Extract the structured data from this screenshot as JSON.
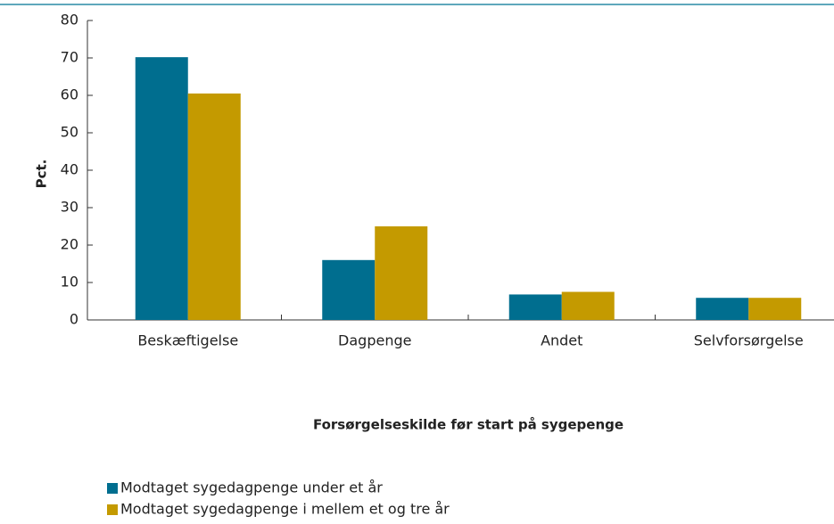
{
  "chart_data": {
    "type": "bar",
    "y_label": "Pct.",
    "x_label": "Forsørgelseskilde før start på sygepenge",
    "categories": [
      "Beskæftigelse",
      "Dagpenge",
      "Andet",
      "Selvforsørgelse"
    ],
    "series": [
      {
        "name": "Modtaget sygedagpenge under et år",
        "color": "#006e8f",
        "values": [
          70.2,
          16,
          6.8,
          5.9
        ]
      },
      {
        "name": "Modtaget sygedagpenge i mellem et og tre år",
        "color": "#c49a00",
        "values": [
          60.5,
          25,
          7.5,
          5.9
        ]
      }
    ],
    "ylim": [
      0,
      80
    ],
    "yticks": [
      0,
      10,
      20,
      30,
      40,
      50,
      60,
      70,
      80
    ],
    "grid": false
  }
}
